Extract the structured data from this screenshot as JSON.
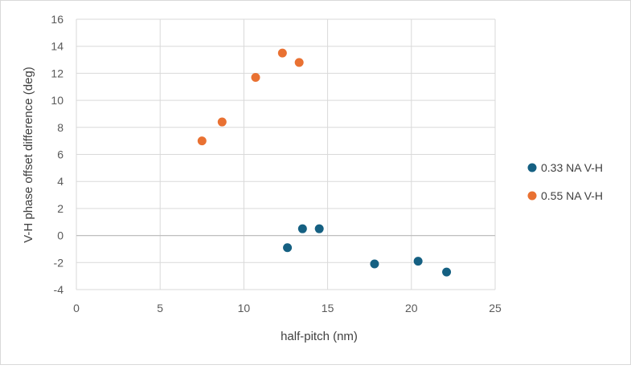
{
  "chart_data": {
    "type": "scatter",
    "title": "",
    "xlabel": "half-pitch (nm)",
    "ylabel": "V-H phase offset difference (deg)",
    "xlim": [
      0,
      25
    ],
    "ylim": [
      -4,
      16
    ],
    "xticks": [
      0,
      5,
      10,
      15,
      20,
      25
    ],
    "yticks": [
      -4,
      -2,
      0,
      2,
      4,
      6,
      8,
      10,
      12,
      14,
      16
    ],
    "grid": true,
    "legend_position": "right",
    "series": [
      {
        "name": "0.33 NA V-H",
        "color": "#156082",
        "points": [
          {
            "x": 12.6,
            "y": -0.9
          },
          {
            "x": 13.5,
            "y": 0.5
          },
          {
            "x": 14.5,
            "y": 0.5
          },
          {
            "x": 17.8,
            "y": -2.1
          },
          {
            "x": 20.4,
            "y": -1.9
          },
          {
            "x": 22.1,
            "y": -2.7
          }
        ]
      },
      {
        "name": "0.55 NA V-H",
        "color": "#E97132",
        "points": [
          {
            "x": 7.5,
            "y": 7.0
          },
          {
            "x": 8.7,
            "y": 8.4
          },
          {
            "x": 10.7,
            "y": 11.7
          },
          {
            "x": 12.3,
            "y": 13.5
          },
          {
            "x": 13.3,
            "y": 12.8
          }
        ]
      }
    ]
  }
}
